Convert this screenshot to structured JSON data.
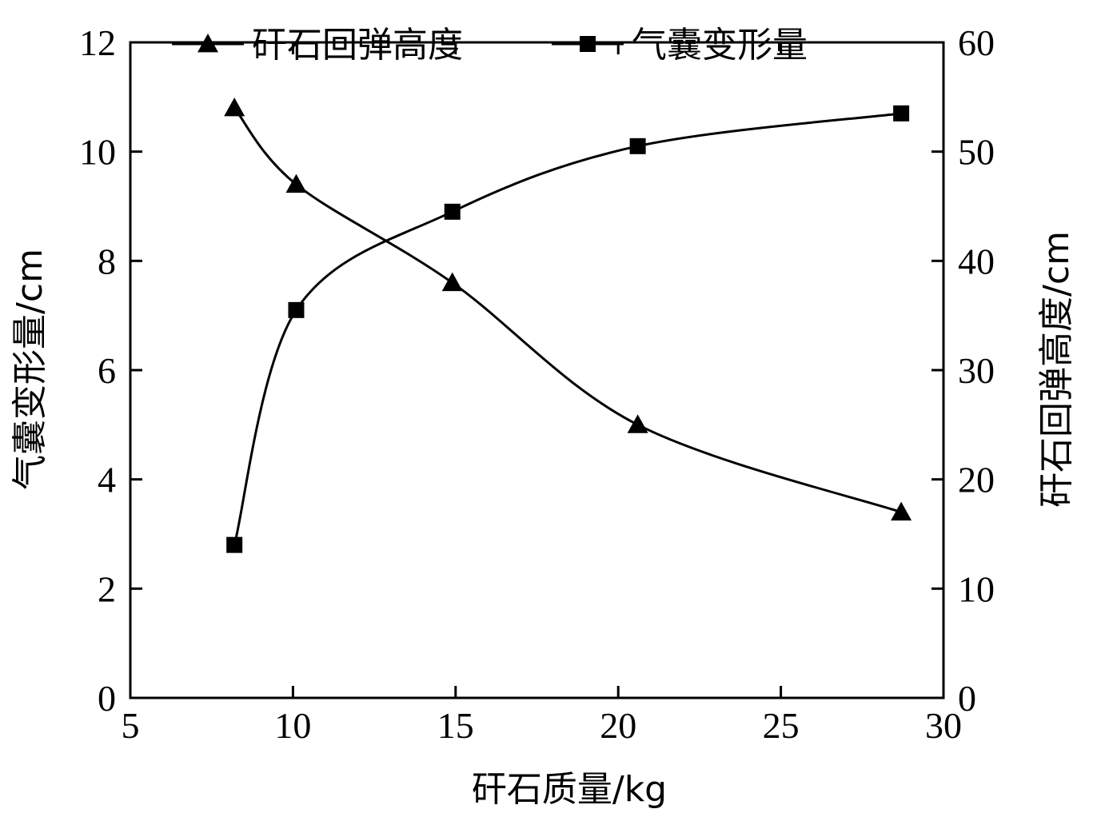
{
  "chart_data": {
    "type": "line",
    "title": "",
    "xlabel": "矸石质量/kg",
    "ylabel_left": "气囊变形量/cm",
    "ylabel_right": "矸石回弹高度/cm",
    "xlim": [
      5,
      30
    ],
    "ylim_left": [
      0,
      12
    ],
    "ylim_right": [
      0,
      60
    ],
    "x_ticks": [
      "5",
      "10",
      "15",
      "20",
      "25",
      "30"
    ],
    "y_left_ticks": [
      "0",
      "2",
      "4",
      "6",
      "8",
      "10",
      "12"
    ],
    "y_right_ticks": [
      "0",
      "10",
      "20",
      "30",
      "40",
      "50",
      "60"
    ],
    "grid": false,
    "legend_position": "top",
    "series": [
      {
        "name": "矸石回弹高度",
        "axis": "right",
        "marker": "triangle",
        "color": "#000000",
        "x": [
          8.2,
          10.1,
          14.9,
          20.6,
          28.7
        ],
        "y": [
          54,
          47,
          38,
          25,
          17
        ]
      },
      {
        "name": "气囊变形量",
        "axis": "left",
        "marker": "square",
        "color": "#000000",
        "x": [
          8.2,
          10.1,
          14.9,
          20.6,
          28.7
        ],
        "y": [
          2.8,
          7.1,
          8.9,
          10.1,
          10.7
        ]
      }
    ]
  }
}
